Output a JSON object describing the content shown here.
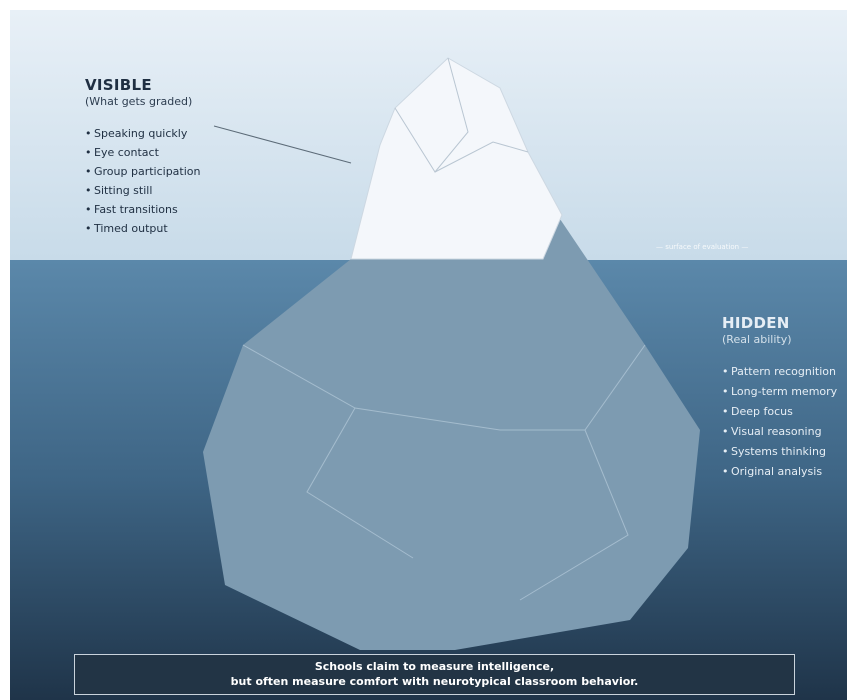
{
  "colors": {
    "sky_top": "#dde8f2",
    "sky_bottom": "#c9dcea",
    "water_top": "#5a87a9",
    "water_bottom": "#1e3449",
    "ice_tip": "#f4f7fb",
    "ice_submerged": "#7c9bb0",
    "caption_bg": "#223445"
  },
  "visible": {
    "title": "VISIBLE",
    "subtitle": "(What gets graded)",
    "items": [
      "Speaking quickly",
      "Eye contact",
      "Group participation",
      "Sitting still",
      "Fast transitions",
      "Timed output"
    ]
  },
  "surface_label": "— surface of evaluation —",
  "hidden": {
    "title": "HIDDEN",
    "subtitle": "(Real ability)",
    "items": [
      "Pattern recognition",
      "Long-term memory",
      "Deep focus",
      "Visual reasoning",
      "Systems thinking",
      "Original analysis"
    ]
  },
  "caption": {
    "line1": "Schools claim to measure intelligence,",
    "line2": "but often measure comfort with neurotypical classroom behavior."
  }
}
